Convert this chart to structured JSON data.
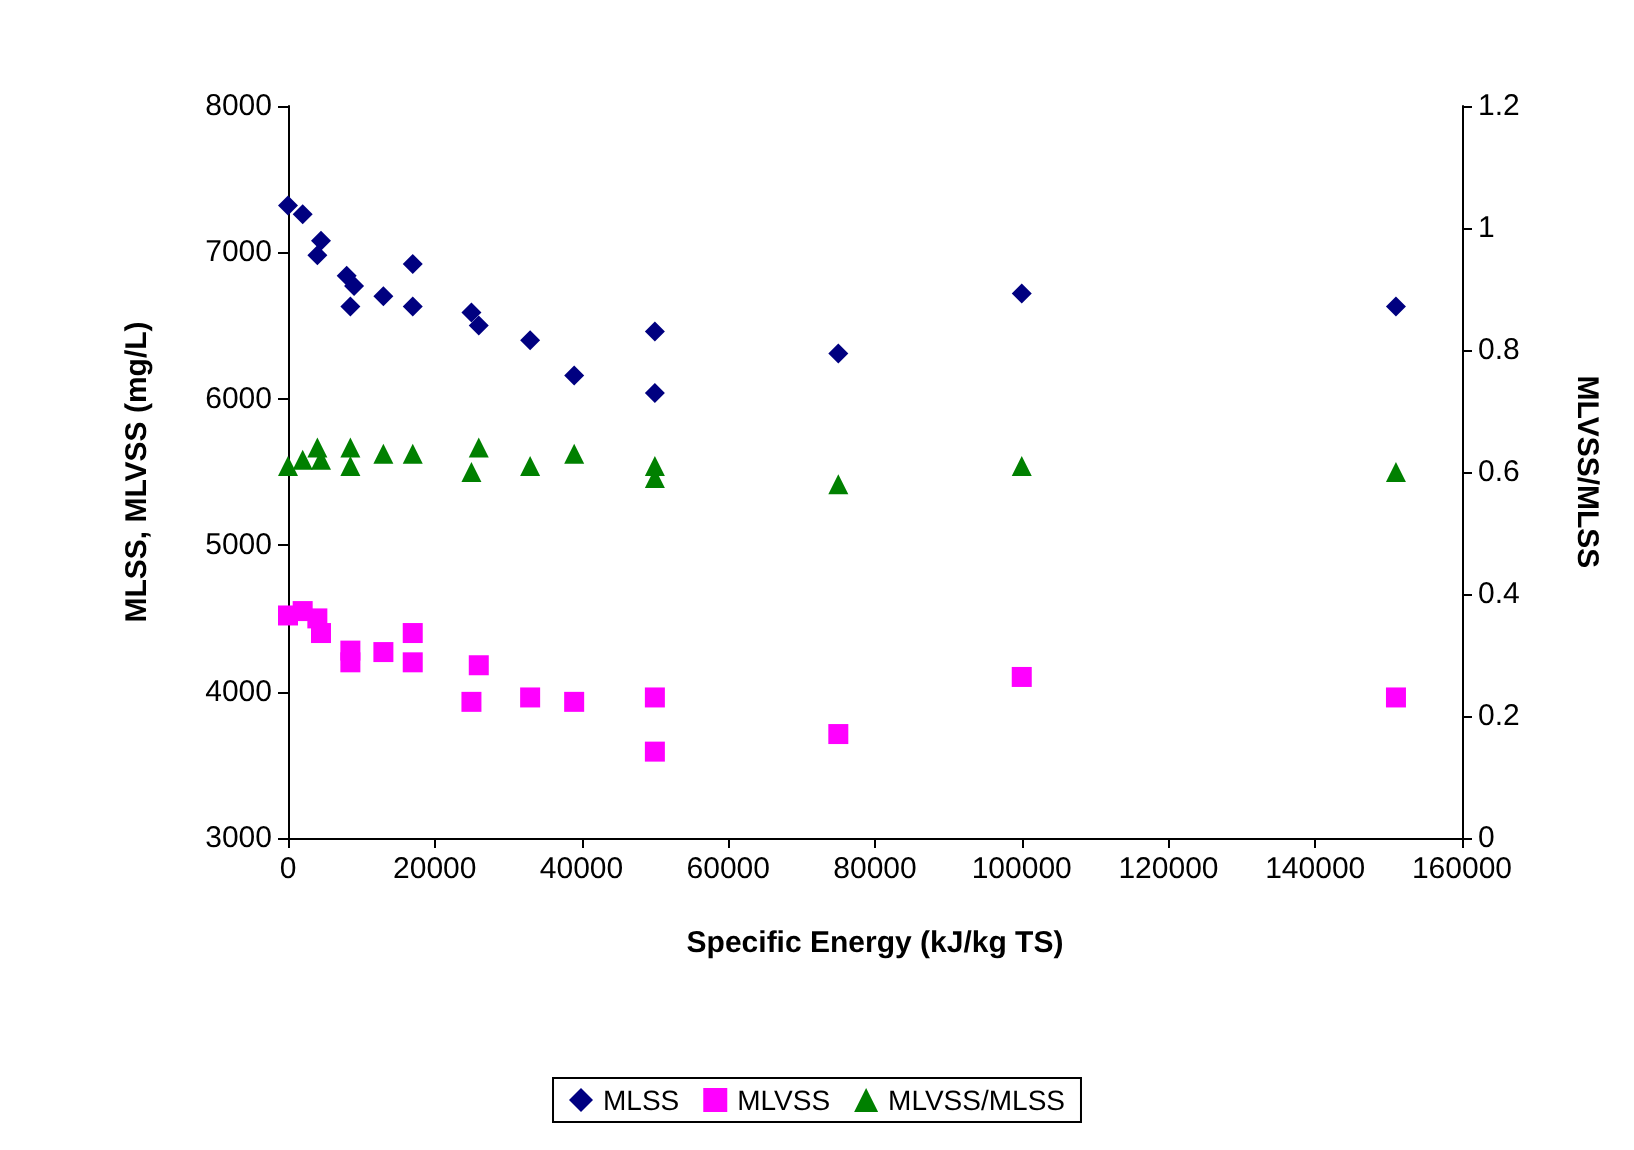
{
  "chart_data": {
    "type": "scatter",
    "xlabel": "Specific Energy (kJ/kg TS)",
    "ylabel": "MLSS, MLVSS (mg/L)",
    "y2label": "MLVSS/MLSS",
    "xlim": [
      0,
      160000
    ],
    "xticks": [
      0,
      20000,
      40000,
      60000,
      80000,
      100000,
      120000,
      140000,
      160000
    ],
    "ylim": [
      3000,
      8000
    ],
    "yticks": [
      3000,
      4000,
      5000,
      6000,
      7000,
      8000
    ],
    "y2lim": [
      0,
      1.2
    ],
    "y2ticks": [
      0,
      0.2,
      0.4,
      0.6,
      0.8,
      1,
      1.2
    ],
    "grid": false,
    "legend": "bottom",
    "series": [
      {
        "name": "MLSS",
        "color": "#000080",
        "marker": "diamond",
        "x": [
          0,
          2000,
          4500,
          4000,
          8000,
          9000,
          8500,
          13000,
          17000,
          17000,
          25000,
          26000,
          33000,
          39000,
          50000,
          50000,
          75000,
          100000,
          151000
        ],
        "values": [
          7320,
          7260,
          7080,
          6980,
          6840,
          6770,
          6630,
          6700,
          6920,
          6630,
          6590,
          6500,
          6400,
          6160,
          6460,
          6040,
          6310,
          6720,
          6630
        ]
      },
      {
        "name": "MLVSS",
        "color": "#ff00ff",
        "marker": "square",
        "x": [
          0,
          2000,
          4000,
          4500,
          8500,
          8500,
          13000,
          17000,
          17000,
          26000,
          25000,
          33000,
          39000,
          50000,
          50000,
          75000,
          100000,
          151000
        ],
        "values": [
          4520,
          4550,
          4500,
          4400,
          4280,
          4200,
          4270,
          4400,
          4200,
          4180,
          3930,
          3960,
          3930,
          3960,
          3590,
          3710,
          4100,
          3960
        ]
      },
      {
        "name": "MLVSS/MLSS",
        "color": "#008000",
        "marker": "triangle",
        "axis": "y2",
        "x": [
          0,
          2000,
          4000,
          4500,
          8500,
          8500,
          13000,
          17000,
          25000,
          26000,
          33000,
          39000,
          50000,
          50000,
          75000,
          100000,
          151000
        ],
        "values": [
          0.61,
          0.62,
          0.64,
          0.62,
          0.64,
          0.61,
          0.63,
          0.63,
          0.6,
          0.64,
          0.61,
          0.63,
          0.61,
          0.59,
          0.58,
          0.61,
          0.6
        ]
      }
    ]
  }
}
